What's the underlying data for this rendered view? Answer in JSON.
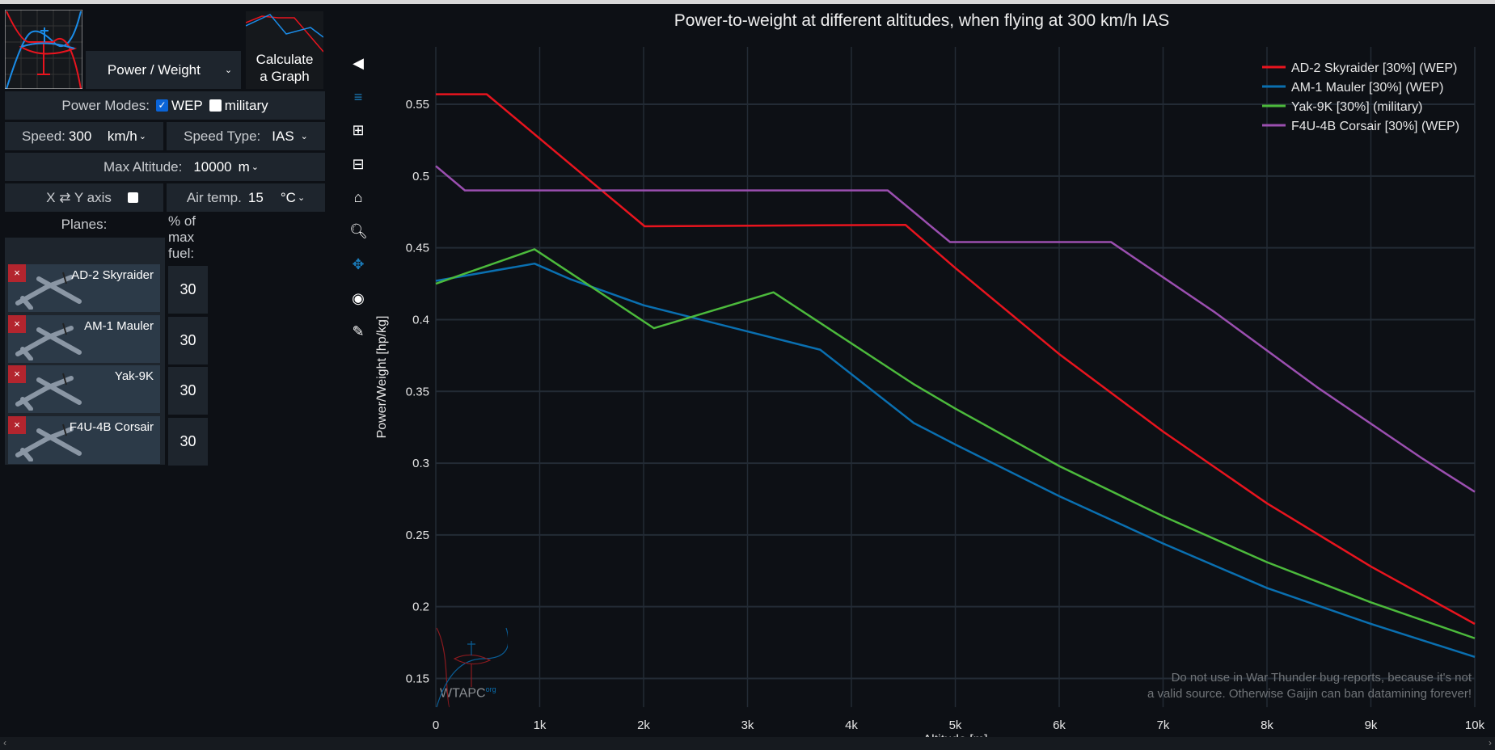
{
  "sidebar": {
    "graph_type": "Power / Weight",
    "calculate_label": "Calculate a Graph",
    "power_modes_label": "Power Modes:",
    "wep_label": "WEP",
    "wep_checked": true,
    "military_label": "military",
    "military_checked": false,
    "speed_label": "Speed:",
    "speed_value": "300",
    "speed_unit": "km/h",
    "speed_type_label": "Speed Type:",
    "speed_type_value": "IAS",
    "max_alt_label": "Max Altitude:",
    "max_alt_value": "10000",
    "max_alt_unit": "m",
    "swap_axis_label": "X ⇄ Y axis",
    "swap_checked": false,
    "air_temp_label": "Air temp.",
    "air_temp_value": "15",
    "air_temp_unit": "°C",
    "planes_label": "Planes:",
    "fuel_label": "% of max fuel:",
    "planes": [
      {
        "name": "AD-2 Skyraider",
        "fuel": "30"
      },
      {
        "name": "AM-1 Mauler",
        "fuel": "30"
      },
      {
        "name": "Yak-9K",
        "fuel": "30"
      },
      {
        "name": "F4U-4B Corsair",
        "fuel": "30"
      }
    ]
  },
  "toolbar": [
    "eraser-icon",
    "layers-icon",
    "zoom-in-icon",
    "zoom-out-icon",
    "home-icon",
    "zoom-box-icon",
    "pan-icon",
    "camera-icon",
    "pencil-icon"
  ],
  "watermark": {
    "logo_text": "WTAPC",
    "logo_sup": "org",
    "line1": "Do not use in War Thunder bug reports, because it's not",
    "line2": "a valid source. Otherwise Gaijin can ban datamining forever!"
  },
  "chart_data": {
    "type": "line",
    "title": "Power-to-weight at different altitudes, when flying at 300 km/h IAS",
    "xlabel": "Altitude [m]",
    "ylabel": "Power/Weight [hp/kg]",
    "xlim": [
      0,
      10000
    ],
    "ylim": [
      0.13,
      0.59
    ],
    "xticks": [
      0,
      1000,
      2000,
      3000,
      4000,
      5000,
      6000,
      7000,
      8000,
      9000,
      10000
    ],
    "xtick_labels": [
      "0",
      "1k",
      "2k",
      "3k",
      "4k",
      "5k",
      "6k",
      "7k",
      "8k",
      "9k",
      "10k"
    ],
    "yticks": [
      0.15,
      0.2,
      0.25,
      0.3,
      0.35,
      0.4,
      0.45,
      0.5,
      0.55
    ],
    "ytick_labels": [
      "0.15",
      "0.2",
      "0.25",
      "0.3",
      "0.35",
      "0.4",
      "0.45",
      "0.5",
      "0.55"
    ],
    "legend": "top-right",
    "grid": true,
    "series": [
      {
        "name": "AD-2 Skyraider [30%] (WEP)",
        "color": "#e8141e",
        "x": [
          0,
          490,
          2010,
          4520,
          5000,
          6000,
          7000,
          8000,
          9000,
          10000
        ],
        "y": [
          0.557,
          0.557,
          0.465,
          0.466,
          0.436,
          0.376,
          0.322,
          0.272,
          0.228,
          0.188
        ]
      },
      {
        "name": "AM-1 Mauler [30%] (WEP)",
        "color": "#0a6fb0",
        "x": [
          0,
          950,
          1300,
          2000,
          3700,
          4600,
          5000,
          6000,
          7000,
          8000,
          9000,
          10000
        ],
        "y": [
          0.427,
          0.439,
          0.428,
          0.41,
          0.379,
          0.328,
          0.313,
          0.277,
          0.244,
          0.213,
          0.188,
          0.165
        ]
      },
      {
        "name": "Yak-9K [30%] (military)",
        "color": "#4cba3c",
        "x": [
          0,
          950,
          2100,
          3250,
          4600,
          5000,
          6000,
          7000,
          8000,
          9000,
          10000
        ],
        "y": [
          0.425,
          0.449,
          0.394,
          0.419,
          0.355,
          0.338,
          0.298,
          0.263,
          0.231,
          0.203,
          0.178
        ]
      },
      {
        "name": "F4U-4B Corsair [30%] (WEP)",
        "color": "#9b4fb0",
        "x": [
          0,
          280,
          4350,
          4950,
          6500,
          7500,
          8500,
          9500,
          10000
        ],
        "y": [
          0.507,
          0.49,
          0.49,
          0.454,
          0.454,
          0.405,
          0.352,
          0.303,
          0.28
        ]
      }
    ]
  }
}
